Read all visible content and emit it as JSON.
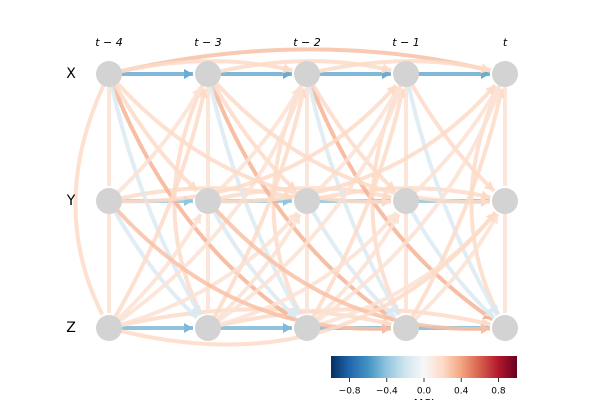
{
  "graph": {
    "time_labels": [
      "t − 4",
      "t − 3",
      "t − 2",
      "t − 1",
      "t"
    ],
    "variables": [
      "X",
      "Y",
      "Z"
    ],
    "links": [
      {
        "source": "X",
        "target": "X",
        "lag": 1,
        "value": -0.5
      },
      {
        "source": "Y",
        "target": "Y",
        "lag": 1,
        "value": -0.4
      },
      {
        "source": "Z",
        "target": "Z",
        "lag": 1,
        "value": -0.45
      },
      {
        "source": "X",
        "target": "X",
        "lag": 4,
        "value": 0.3
      },
      {
        "source": "X",
        "target": "X",
        "lag": 2,
        "value": 0.2
      },
      {
        "source": "Y",
        "target": "Y",
        "lag": 2,
        "value": 0.2
      },
      {
        "source": "Z",
        "target": "Z",
        "lag": 3,
        "value": 0.2
      },
      {
        "source": "X",
        "target": "Y",
        "lag": 0,
        "value": 0.15
      },
      {
        "source": "Y",
        "target": "Z",
        "lag": 0,
        "value": 0.15
      },
      {
        "source": "X",
        "target": "Z",
        "lag": 0,
        "value": 0.2
      },
      {
        "source": "X",
        "target": "Z",
        "lag": 2,
        "value": 0.35
      },
      {
        "source": "X",
        "target": "Z",
        "lag": 1,
        "value": -0.15
      },
      {
        "source": "Y",
        "target": "Z",
        "lag": 1,
        "value": -0.15
      },
      {
        "source": "Z",
        "target": "X",
        "lag": 1,
        "value": 0.2
      },
      {
        "source": "Z",
        "target": "Y",
        "lag": 1,
        "value": 0.15
      },
      {
        "source": "X",
        "target": "Y",
        "lag": 1,
        "value": 0.2
      },
      {
        "source": "Y",
        "target": "X",
        "lag": 1,
        "value": 0.15
      },
      {
        "source": "Z",
        "target": "X",
        "lag": 2,
        "value": 0.15
      },
      {
        "source": "Y",
        "target": "X",
        "lag": 3,
        "value": 0.2
      },
      {
        "source": "Z",
        "target": "Y",
        "lag": 2,
        "value": 0.15
      },
      {
        "source": "X",
        "target": "Y",
        "lag": 3,
        "value": 0.2
      },
      {
        "source": "Y",
        "target": "Z",
        "lag": 3,
        "value": 0.3
      },
      {
        "source": "Z",
        "target": "Y",
        "lag": 4,
        "value": 0.2
      }
    ],
    "colorbar": {
      "label": "MCI",
      "clim": [
        -1,
        1
      ],
      "ticks": [
        {
          "value": -0.8,
          "label": "−0.8"
        },
        {
          "value": -0.4,
          "label": "−0.4"
        },
        {
          "value": 0,
          "label": "0.0"
        },
        {
          "value": 0.4,
          "label": "0.4"
        },
        {
          "value": 0.8,
          "label": "0.8"
        }
      ]
    }
  }
}
